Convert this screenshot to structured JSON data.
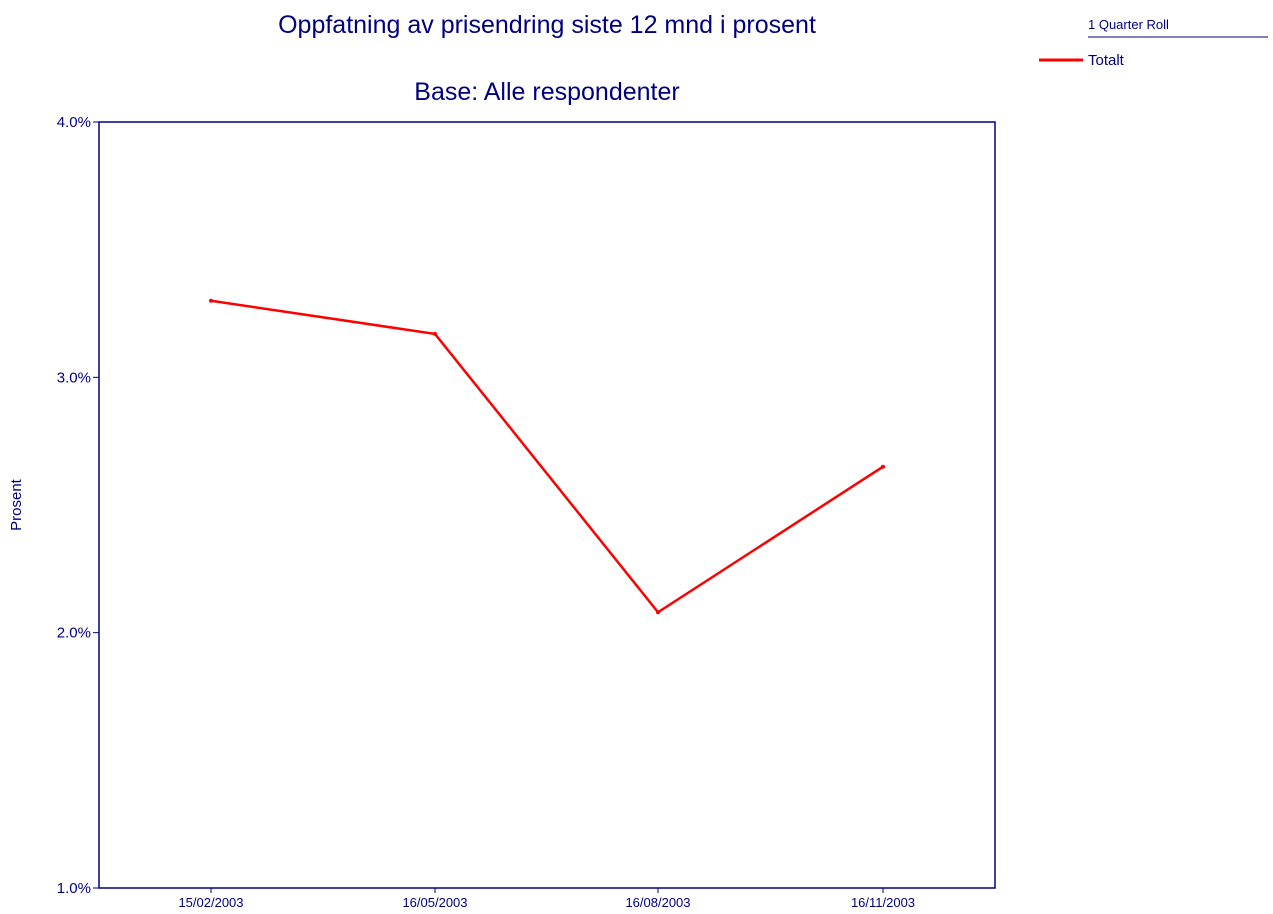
{
  "chart_data": {
    "type": "line",
    "title": "Oppfatning av prisendring siste 12 mnd i prosent",
    "subtitle": "Base: Alle respondenter",
    "ylabel": "Prosent",
    "xlabel": "",
    "x": [
      "15/02/2003",
      "16/05/2003",
      "16/08/2003",
      "16/11/2003"
    ],
    "y_ticks": [
      "1.0%",
      "2.0%",
      "3.0%",
      "4.0%"
    ],
    "ylim": [
      1.0,
      4.0
    ],
    "y_unit": "%",
    "grid": false,
    "legend": {
      "title": "1 Quarter Roll",
      "position": "top-right",
      "entries": [
        "Totalt"
      ]
    },
    "series": [
      {
        "name": "Totalt",
        "color": "#ff0000",
        "values": [
          3.3,
          3.17,
          2.08,
          2.65
        ]
      }
    ],
    "colors": {
      "axis": "#000080",
      "text": "#000080",
      "series": "#ff0000"
    }
  }
}
